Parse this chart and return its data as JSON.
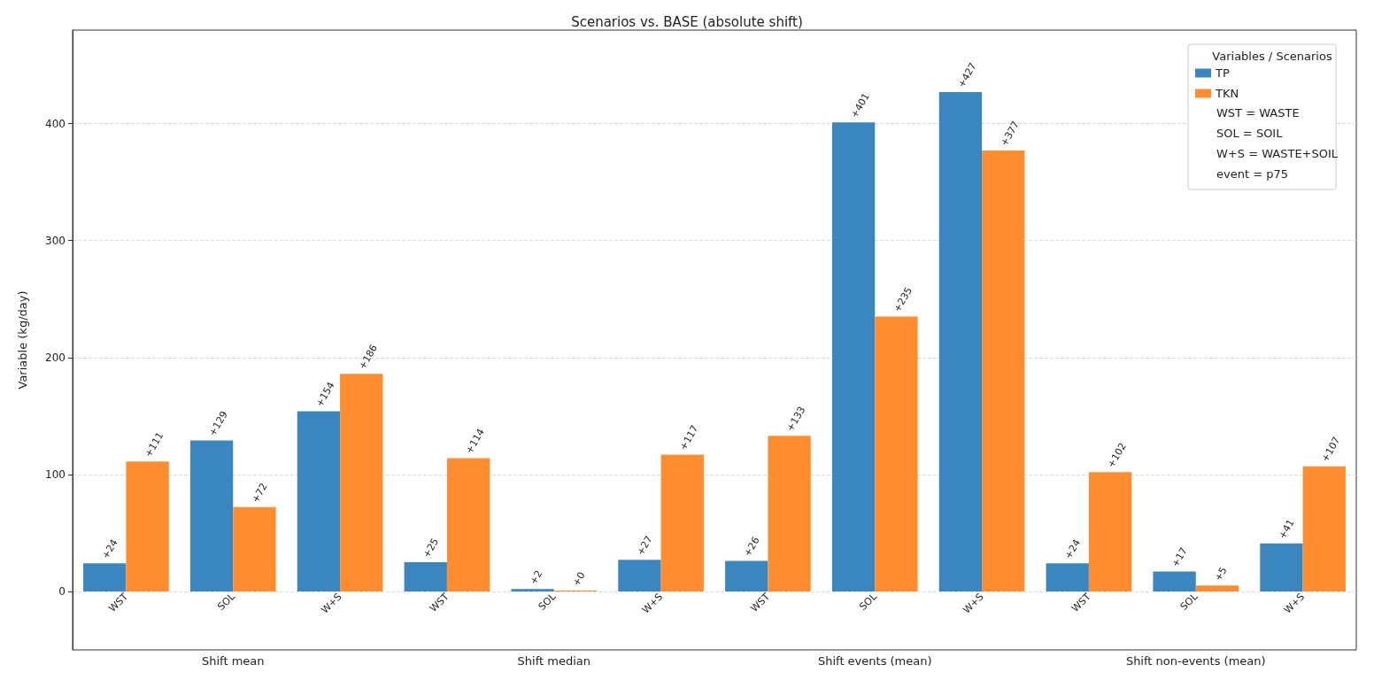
{
  "chart_data": {
    "type": "bar",
    "title": "Scenarios vs. BASE (absolute shift)",
    "ylabel": "Variable (kg/day)",
    "legend_title": "Variables / Scenarios",
    "categories": [
      "WST",
      "SOL",
      "W+S",
      "WST",
      "SOL",
      "W+S",
      "WST",
      "SOL",
      "W+S",
      "WST",
      "SOL",
      "W+S"
    ],
    "series": [
      {
        "name": "TP",
        "color": "#3a87c0",
        "values": [
          24,
          129,
          154,
          25,
          2,
          27,
          26,
          401,
          427,
          24,
          17,
          41
        ],
        "value_labels": [
          "+24",
          "+129",
          "+154",
          "+25",
          "+2",
          "+27",
          "+26",
          "+401",
          "+427",
          "+24",
          "+17",
          "+41"
        ]
      },
      {
        "name": "TKN",
        "color": "#ff8c2e",
        "values": [
          111,
          72,
          186,
          114,
          0,
          117,
          133,
          235,
          377,
          102,
          5,
          107
        ],
        "value_labels": [
          "+111",
          "+72",
          "+186",
          "+114",
          "+0",
          "+117",
          "+133",
          "+235",
          "+377",
          "+102",
          "+5",
          "+107"
        ]
      }
    ],
    "annotations": [
      "Shift mean",
      "Shift median",
      "Shift events (mean)",
      "Shift non-events (mean)",
      "WST = WASTE",
      "SOL = SOIL",
      "W+S = WASTE+SOIL",
      "event = p75"
    ],
    "ylim": [
      -50,
      480
    ],
    "yticks": [
      0,
      100,
      200,
      300,
      400
    ],
    "grid": "y",
    "legend": "top right"
  }
}
